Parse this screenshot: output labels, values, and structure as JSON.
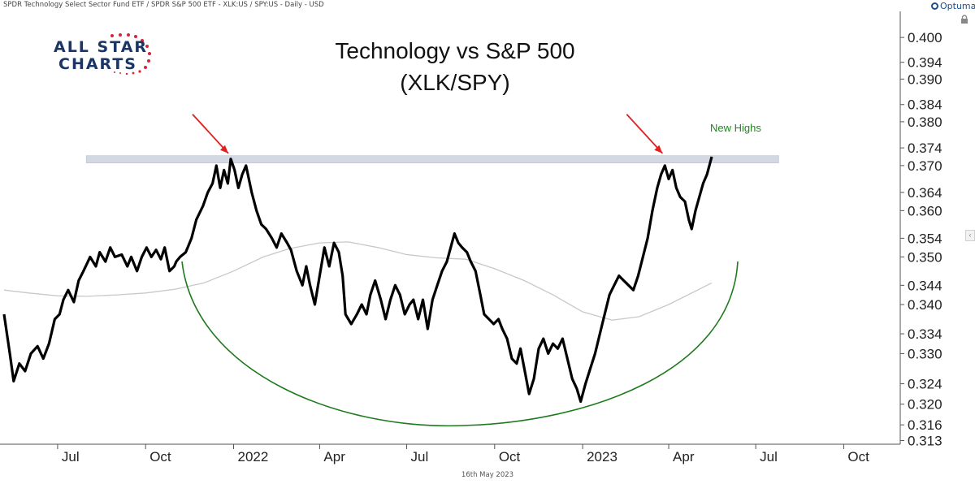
{
  "header": {
    "description": "SPDR Technology Select Sector Fund ETF / SPDR S&P 500 ETF - XLK:US / SPY:US - Daily - USD",
    "brand": "Optuma"
  },
  "logo": {
    "line1": "ALL STAR",
    "line2": "CHARTS"
  },
  "footer": {
    "date": "16th May 2023"
  },
  "colors": {
    "price": "#000000",
    "moving_average": "#c8c8c8",
    "arc": "#1e7a1e",
    "resistance_band": "#d3d8e2",
    "arrows": "#e02020",
    "annotation": "#1e8a1e"
  },
  "chart_data": {
    "type": "line",
    "title": "Technology vs S&P 500",
    "subtitle": "(XLK/SPY)",
    "xlabel": "",
    "ylabel": "",
    "scale": "log",
    "ylim": [
      0.3123,
      0.403
    ],
    "x_ticks": [
      "Jul",
      "Oct",
      "2022",
      "Apr",
      "Jul",
      "Oct",
      "2023",
      "Apr",
      "Jul",
      "Oct"
    ],
    "y_ticks": [
      "0.400",
      "0.394",
      "0.390",
      "0.384",
      "0.380",
      "0.374",
      "0.370",
      "0.364",
      "0.360",
      "0.354",
      "0.350",
      "0.344",
      "0.340",
      "0.334",
      "0.330",
      "0.324",
      "0.320",
      "0.316",
      "0.313"
    ],
    "grid": false,
    "series": [
      {
        "role": "price",
        "values": [
          [
            "2021-05-06",
            0.338
          ],
          [
            "2021-05-12",
            0.33
          ],
          [
            "2021-05-16",
            0.3245
          ],
          [
            "2021-05-22",
            0.328
          ],
          [
            "2021-05-28",
            0.3265
          ],
          [
            "2021-06-03",
            0.33
          ],
          [
            "2021-06-10",
            0.3315
          ],
          [
            "2021-06-16",
            0.329
          ],
          [
            "2021-06-22",
            0.332
          ],
          [
            "2021-06-28",
            0.337
          ],
          [
            "2021-07-03",
            0.338
          ],
          [
            "2021-07-07",
            0.341
          ],
          [
            "2021-07-12",
            0.343
          ],
          [
            "2021-07-18",
            0.3405
          ],
          [
            "2021-07-23",
            0.345
          ],
          [
            "2021-07-28",
            0.347
          ],
          [
            "2021-08-04",
            0.35
          ],
          [
            "2021-08-10",
            0.348
          ],
          [
            "2021-08-14",
            0.351
          ],
          [
            "2021-08-20",
            0.349
          ],
          [
            "2021-08-25",
            0.352
          ],
          [
            "2021-08-30",
            0.35
          ],
          [
            "2021-09-06",
            0.3505
          ],
          [
            "2021-09-12",
            0.348
          ],
          [
            "2021-09-16",
            0.35
          ],
          [
            "2021-09-22",
            0.347
          ],
          [
            "2021-09-27",
            0.35
          ],
          [
            "2021-10-02",
            0.352
          ],
          [
            "2021-10-07",
            0.35
          ],
          [
            "2021-10-12",
            0.3515
          ],
          [
            "2021-10-17",
            0.3495
          ],
          [
            "2021-10-21",
            0.352
          ],
          [
            "2021-10-26",
            0.347
          ],
          [
            "2021-10-31",
            0.348
          ],
          [
            "2021-11-02",
            0.349
          ],
          [
            "2021-11-06",
            0.35
          ],
          [
            "2021-11-12",
            0.351
          ],
          [
            "2021-11-18",
            0.354
          ],
          [
            "2021-11-23",
            0.358
          ],
          [
            "2021-11-30",
            0.361
          ],
          [
            "2021-12-05",
            0.364
          ],
          [
            "2021-12-10",
            0.366
          ],
          [
            "2021-12-14",
            0.37
          ],
          [
            "2021-12-18",
            0.365
          ],
          [
            "2021-12-22",
            0.369
          ],
          [
            "2021-12-26",
            0.366
          ],
          [
            "2021-12-29",
            0.3715
          ],
          [
            "2022-01-02",
            0.369
          ],
          [
            "2022-01-06",
            0.365
          ],
          [
            "2022-01-10",
            0.368
          ],
          [
            "2022-01-14",
            0.37
          ],
          [
            "2022-01-20",
            0.364
          ],
          [
            "2022-01-25",
            0.36
          ],
          [
            "2022-01-30",
            0.357
          ],
          [
            "2022-02-04",
            0.356
          ],
          [
            "2022-02-10",
            0.354
          ],
          [
            "2022-02-15",
            0.352
          ],
          [
            "2022-02-20",
            0.355
          ],
          [
            "2022-02-26",
            0.353
          ],
          [
            "2022-03-02",
            0.3515
          ],
          [
            "2022-03-08",
            0.347
          ],
          [
            "2022-03-14",
            0.344
          ],
          [
            "2022-03-18",
            0.348
          ],
          [
            "2022-03-22",
            0.344
          ],
          [
            "2022-03-27",
            0.34
          ],
          [
            "2022-04-01",
            0.346
          ],
          [
            "2022-04-06",
            0.352
          ],
          [
            "2022-04-11",
            0.348
          ],
          [
            "2022-04-16",
            0.353
          ],
          [
            "2022-04-21",
            0.351
          ],
          [
            "2022-04-25",
            0.346
          ],
          [
            "2022-04-28",
            0.338
          ],
          [
            "2022-05-04",
            0.336
          ],
          [
            "2022-05-10",
            0.338
          ],
          [
            "2022-05-15",
            0.34
          ],
          [
            "2022-05-20",
            0.338
          ],
          [
            "2022-05-24",
            0.342
          ],
          [
            "2022-05-29",
            0.345
          ],
          [
            "2022-06-04",
            0.341
          ],
          [
            "2022-06-09",
            0.337
          ],
          [
            "2022-06-14",
            0.341
          ],
          [
            "2022-06-19",
            0.344
          ],
          [
            "2022-06-24",
            0.342
          ],
          [
            "2022-06-29",
            0.338
          ],
          [
            "2022-07-04",
            0.34
          ],
          [
            "2022-07-08",
            0.341
          ],
          [
            "2022-07-13",
            0.337
          ],
          [
            "2022-07-18",
            0.341
          ],
          [
            "2022-07-23",
            0.335
          ],
          [
            "2022-07-28",
            0.341
          ],
          [
            "2022-08-02",
            0.344
          ],
          [
            "2022-08-07",
            0.347
          ],
          [
            "2022-08-12",
            0.349
          ],
          [
            "2022-08-16",
            0.352
          ],
          [
            "2022-08-20",
            0.355
          ],
          [
            "2022-08-24",
            0.353
          ],
          [
            "2022-08-28",
            0.352
          ],
          [
            "2022-09-02",
            0.351
          ],
          [
            "2022-09-06",
            0.349
          ],
          [
            "2022-09-11",
            0.347
          ],
          [
            "2022-09-16",
            0.342
          ],
          [
            "2022-09-20",
            0.338
          ],
          [
            "2022-09-25",
            0.337
          ],
          [
            "2022-09-30",
            0.336
          ],
          [
            "2022-10-05",
            0.337
          ],
          [
            "2022-10-09",
            0.335
          ],
          [
            "2022-10-14",
            0.333
          ],
          [
            "2022-10-19",
            0.329
          ],
          [
            "2022-10-24",
            0.328
          ],
          [
            "2022-10-28",
            0.331
          ],
          [
            "2022-11-02",
            0.326
          ],
          [
            "2022-11-06",
            0.322
          ],
          [
            "2022-11-11",
            0.325
          ],
          [
            "2022-11-16",
            0.331
          ],
          [
            "2022-11-21",
            0.333
          ],
          [
            "2022-11-26",
            0.33
          ],
          [
            "2022-12-01",
            0.332
          ],
          [
            "2022-12-06",
            0.331
          ],
          [
            "2022-12-11",
            0.333
          ],
          [
            "2022-12-16",
            0.329
          ],
          [
            "2022-12-21",
            0.325
          ],
          [
            "2022-12-26",
            0.323
          ],
          [
            "2022-12-30",
            0.3205
          ],
          [
            "2023-01-04",
            0.324
          ],
          [
            "2023-01-09",
            0.327
          ],
          [
            "2023-01-14",
            0.33
          ],
          [
            "2023-01-19",
            0.334
          ],
          [
            "2023-01-24",
            0.338
          ],
          [
            "2023-01-29",
            0.342
          ],
          [
            "2023-02-03",
            0.344
          ],
          [
            "2023-02-08",
            0.346
          ],
          [
            "2023-02-13",
            0.345
          ],
          [
            "2023-02-18",
            0.344
          ],
          [
            "2023-02-23",
            0.343
          ],
          [
            "2023-02-28",
            0.346
          ],
          [
            "2023-03-05",
            0.35
          ],
          [
            "2023-03-10",
            0.354
          ],
          [
            "2023-03-15",
            0.36
          ],
          [
            "2023-03-20",
            0.365
          ],
          [
            "2023-03-24",
            0.368
          ],
          [
            "2023-03-28",
            0.37
          ],
          [
            "2023-04-01",
            0.367
          ],
          [
            "2023-04-05",
            0.369
          ],
          [
            "2023-04-09",
            0.365
          ],
          [
            "2023-04-13",
            0.363
          ],
          [
            "2023-04-18",
            0.362
          ],
          [
            "2023-04-22",
            0.358
          ],
          [
            "2023-04-25",
            0.356
          ],
          [
            "2023-04-29",
            0.36
          ],
          [
            "2023-05-03",
            0.363
          ],
          [
            "2023-05-07",
            0.366
          ],
          [
            "2023-05-11",
            0.368
          ],
          [
            "2023-05-16",
            0.372
          ]
        ]
      },
      {
        "role": "moving_average",
        "values": [
          [
            "2021-05-06",
            0.343
          ],
          [
            "2021-06-01",
            0.3424
          ],
          [
            "2021-07-01",
            0.3418
          ],
          [
            "2021-08-01",
            0.3417
          ],
          [
            "2021-09-01",
            0.342
          ],
          [
            "2021-10-01",
            0.3424
          ],
          [
            "2021-11-01",
            0.3432
          ],
          [
            "2021-12-01",
            0.3445
          ],
          [
            "2022-01-01",
            0.347
          ],
          [
            "2022-02-01",
            0.35
          ],
          [
            "2022-03-01",
            0.3518
          ],
          [
            "2022-04-01",
            0.353
          ],
          [
            "2022-05-01",
            0.3532
          ],
          [
            "2022-06-01",
            0.352
          ],
          [
            "2022-07-01",
            0.3505
          ],
          [
            "2022-08-01",
            0.3498
          ],
          [
            "2022-09-01",
            0.3495
          ],
          [
            "2022-10-01",
            0.3475
          ],
          [
            "2022-11-01",
            0.345
          ],
          [
            "2022-12-01",
            0.342
          ],
          [
            "2023-01-01",
            0.3385
          ],
          [
            "2023-02-01",
            0.3368
          ],
          [
            "2023-03-01",
            0.3375
          ],
          [
            "2023-04-01",
            0.34
          ],
          [
            "2023-05-16",
            0.3445
          ]
        ]
      }
    ],
    "annotations": {
      "resistance_level": 0.3715,
      "resistance_range": [
        "2021-07-31",
        "2023-07-25"
      ],
      "arrows_at": [
        "2021-12-29",
        "2023-03-28"
      ],
      "arc_label": "",
      "new_highs_label": "New Highs"
    }
  }
}
